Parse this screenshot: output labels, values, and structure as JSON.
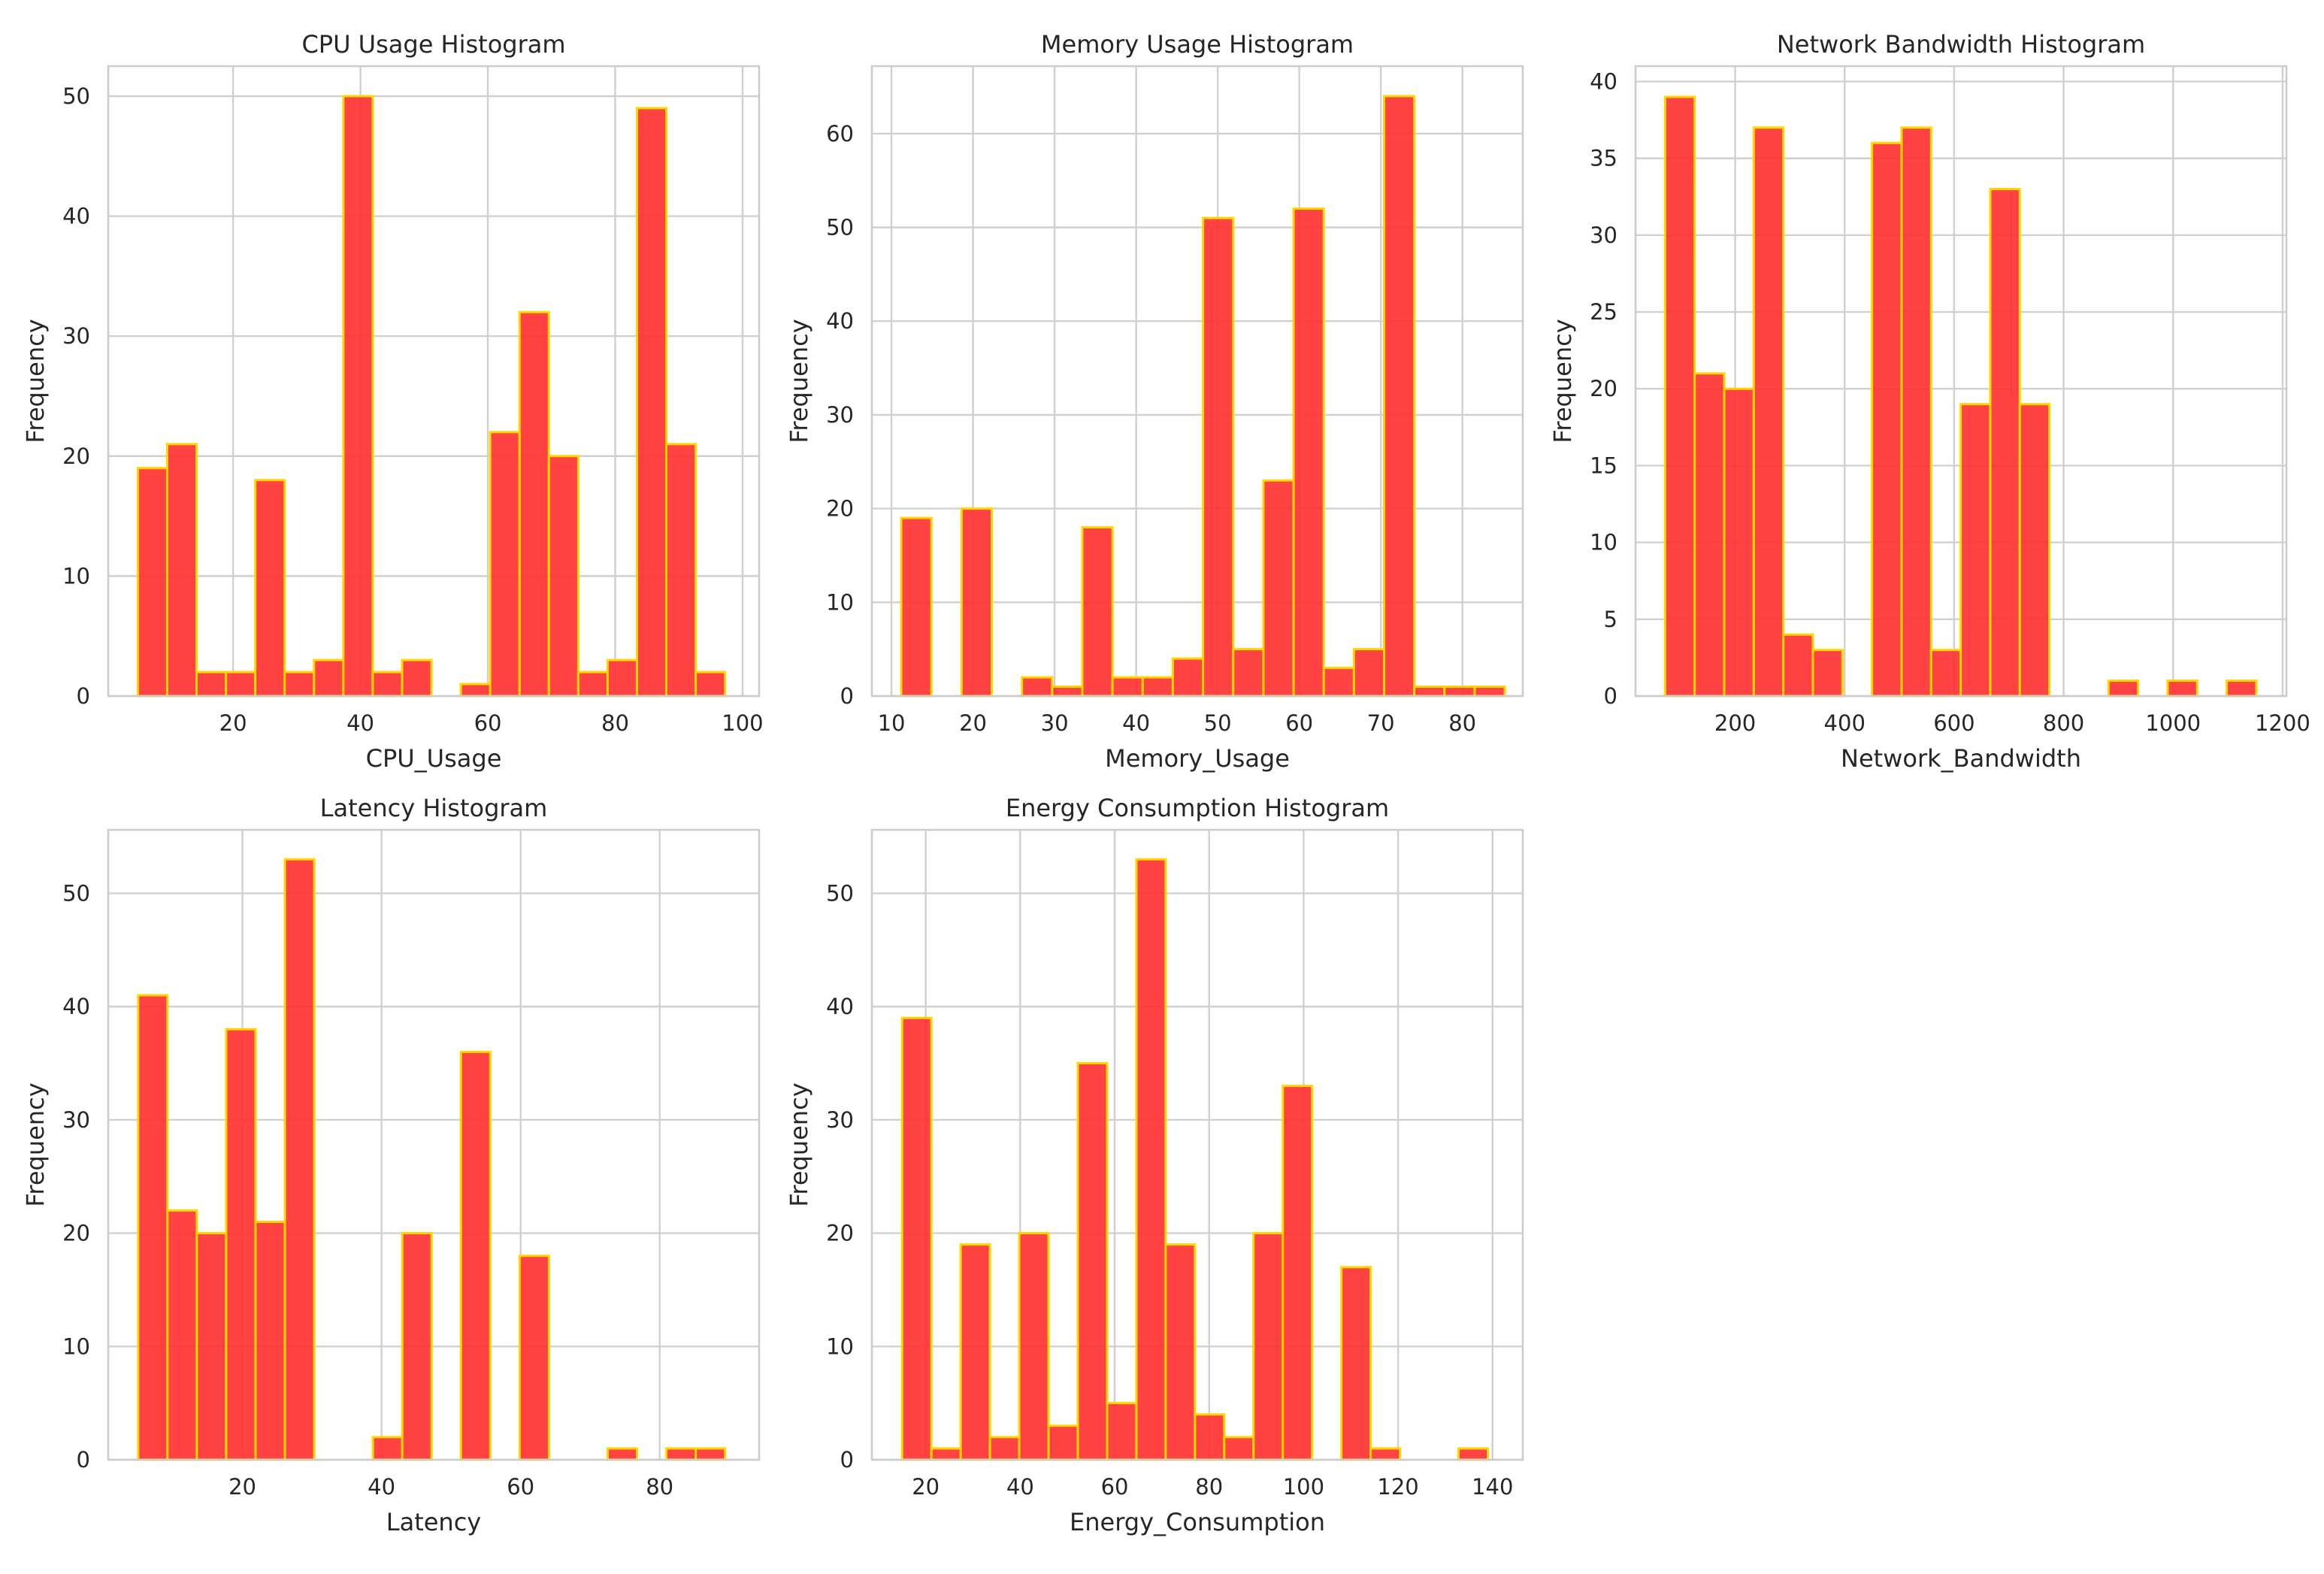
{
  "style": {
    "bar_fill": "#ff2d2d",
    "bar_edge": "#ffd700",
    "grid": "#d0d0d0",
    "frame": "#cccccc",
    "text": "#262626"
  },
  "chart_data": [
    {
      "type": "bar",
      "title": "CPU Usage Histogram",
      "xlabel": "CPU_Usage",
      "ylabel": "Frequency",
      "xlim": [
        0.4,
        102.6
      ],
      "ylim": [
        0,
        52.5
      ],
      "xticks": [
        20,
        40,
        60,
        80,
        100
      ],
      "yticks": [
        0,
        10,
        20,
        30,
        40,
        50
      ],
      "bin_start": 5.05,
      "bin_width": 4.61,
      "values": [
        19,
        21,
        2,
        2,
        18,
        2,
        3,
        50,
        2,
        3,
        0,
        1,
        22,
        32,
        20,
        2,
        3,
        49,
        21,
        2
      ]
    },
    {
      "type": "bar",
      "title": "Memory Usage Histogram",
      "xlabel": "Memory_Usage",
      "ylabel": "Frequency",
      "xlim": [
        7.6,
        87.4
      ],
      "ylim": [
        0,
        67.2
      ],
      "xticks": [
        10,
        20,
        30,
        40,
        50,
        60,
        70,
        80
      ],
      "yticks": [
        0,
        10,
        20,
        30,
        40,
        50,
        60
      ],
      "bin_start": 11.2,
      "bin_width": 3.7,
      "values": [
        19,
        0,
        20,
        0,
        2,
        1,
        18,
        2,
        2,
        4,
        51,
        5,
        23,
        52,
        3,
        5,
        64,
        1,
        1,
        1
      ]
    },
    {
      "type": "bar",
      "title": "Network Bandwidth Histogram",
      "xlabel": "Network_Bandwidth",
      "ylabel": "Frequency",
      "xlim": [
        18,
        1207
      ],
      "ylim": [
        0,
        41
      ],
      "xticks": [
        200,
        400,
        600,
        800,
        1000,
        1200
      ],
      "yticks": [
        0,
        5,
        10,
        15,
        20,
        25,
        30,
        35,
        40
      ],
      "bin_start": 72,
      "bin_width": 54,
      "values": [
        39,
        21,
        20,
        37,
        4,
        3,
        0,
        36,
        37,
        3,
        19,
        33,
        19,
        0,
        0,
        1,
        0,
        1,
        0,
        1
      ]
    },
    {
      "type": "bar",
      "title": "Latency Histogram",
      "xlabel": "Latency",
      "ylabel": "Frequency",
      "xlim": [
        0.7,
        94.3
      ],
      "ylim": [
        0,
        55.6
      ],
      "xticks": [
        20,
        40,
        60,
        80
      ],
      "yticks": [
        0,
        10,
        20,
        30,
        40,
        50
      ],
      "bin_start": 5.0,
      "bin_width": 4.22,
      "values": [
        41,
        22,
        20,
        38,
        21,
        53,
        0,
        0,
        2,
        20,
        0,
        36,
        0,
        18,
        0,
        0,
        1,
        0,
        1,
        1
      ]
    },
    {
      "type": "bar",
      "title": "Energy Consumption Histogram",
      "xlabel": "Energy_Consumption",
      "ylabel": "Frequency",
      "xlim": [
        8.6,
        146.4
      ],
      "ylim": [
        0,
        55.6
      ],
      "xticks": [
        20,
        40,
        60,
        80,
        100,
        120,
        140
      ],
      "yticks": [
        0,
        10,
        20,
        30,
        40,
        50
      ],
      "bin_start": 15.0,
      "bin_width": 6.2,
      "values": [
        39,
        1,
        19,
        2,
        20,
        3,
        35,
        5,
        53,
        19,
        4,
        2,
        20,
        33,
        0,
        17,
        1,
        0,
        0,
        1
      ]
    }
  ]
}
